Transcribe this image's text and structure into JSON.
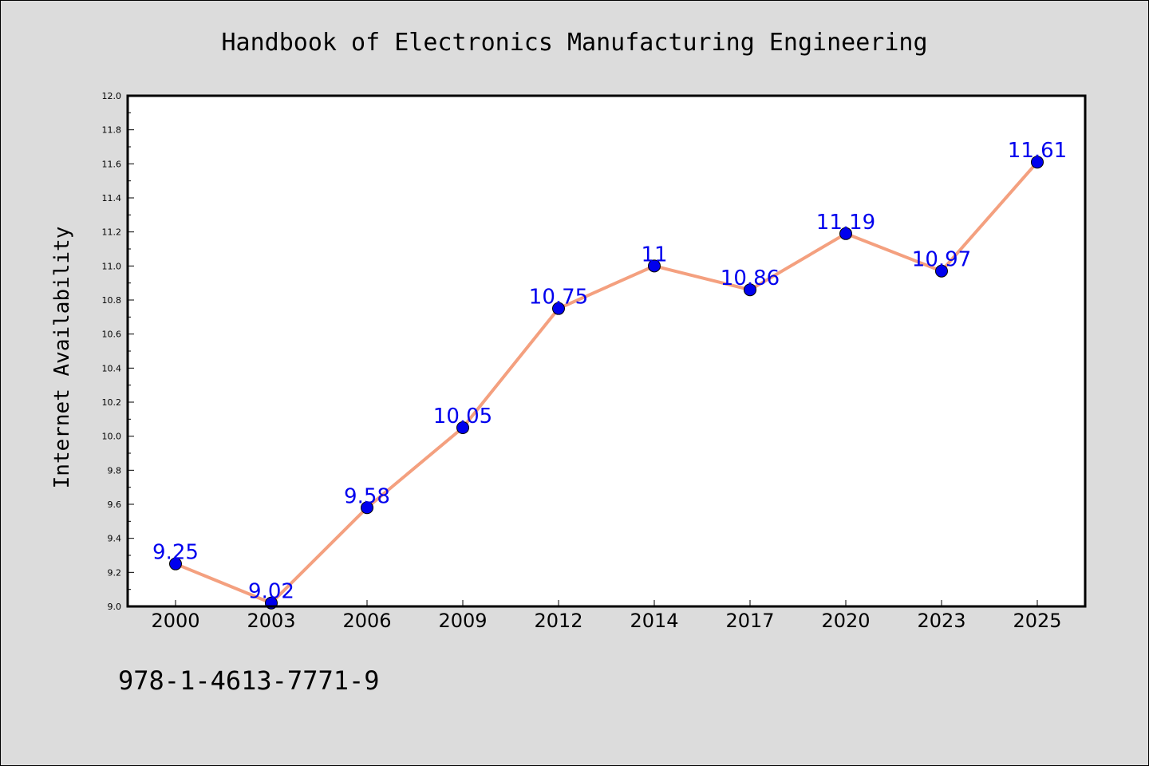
{
  "colors": {
    "background": "#dcdcdc",
    "plot_background": "#ffffff",
    "line": "#f4a07f",
    "marker": "#0000ee",
    "data_label": "#0000ee"
  },
  "footer": {
    "isbn": "978-1-4613-7771-9"
  },
  "chart_data": {
    "type": "line",
    "title": "Handbook of Electronics Manufacturing Engineering",
    "xlabel": "",
    "ylabel": "Internet Availability",
    "categories": [
      "2000",
      "2003",
      "2006",
      "2009",
      "2012",
      "2014",
      "2017",
      "2020",
      "2023",
      "2025"
    ],
    "series": [
      {
        "values": [
          9.25,
          9.02,
          9.58,
          10.05,
          10.75,
          11,
          10.86,
          11.19,
          10.97,
          11.61
        ],
        "data_labels": [
          "9.25",
          "9.02",
          "9.58",
          "10.05",
          "10.75",
          "11",
          "10.86",
          "11.19",
          "10.97",
          "11.61"
        ]
      }
    ],
    "ylim": [
      9.0,
      12.0
    ],
    "yticks": [
      "9.0",
      "9.2",
      "9.4",
      "9.6",
      "9.8",
      "10.0",
      "10.2",
      "10.4",
      "10.6",
      "10.8",
      "11.0",
      "11.2",
      "11.4",
      "11.6",
      "11.8",
      "12.0"
    ],
    "grid": false,
    "legend": "none"
  }
}
